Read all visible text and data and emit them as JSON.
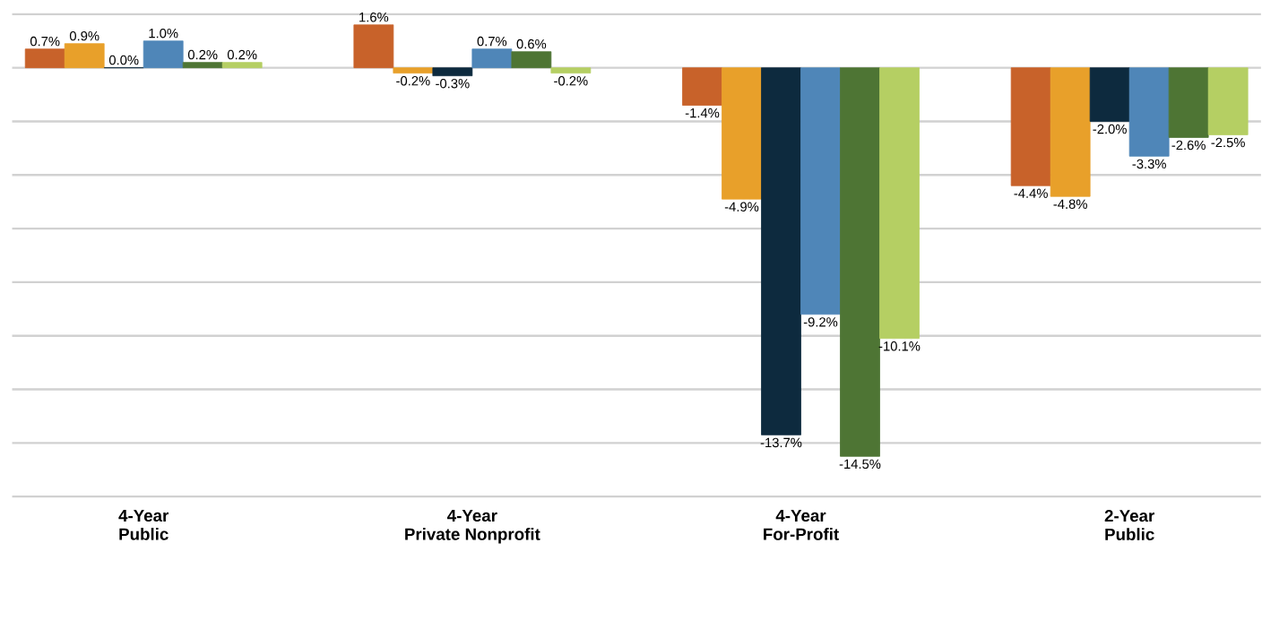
{
  "chart_data": {
    "type": "bar",
    "categories": [
      "4-Year\nPublic",
      "4-Year\nPrivate Nonprofit",
      "4-Year\nFor-Profit",
      "2-Year\nPublic"
    ],
    "series": [
      {
        "color": "#c8622a",
        "values": [
          0.7,
          1.6,
          -1.4,
          -4.4
        ],
        "value_labels": [
          "0.7%",
          "1.6%",
          "-1.4%",
          "-4.4%"
        ]
      },
      {
        "color": "#e8a02a",
        "values": [
          0.9,
          -0.2,
          -4.9,
          -4.8
        ],
        "value_labels": [
          "0.9%",
          "-0.2%",
          "-4.9%",
          "-4.8%"
        ]
      },
      {
        "color": "#0d2a3e",
        "values": [
          0.0,
          -0.3,
          -13.7,
          -2.0
        ],
        "value_labels": [
          "0.0%",
          "-0.3%",
          "-13.7%",
          "-2.0%"
        ]
      },
      {
        "color": "#4f86b8",
        "values": [
          1.0,
          0.7,
          -9.2,
          -3.3
        ],
        "value_labels": [
          "1.0%",
          "0.7%",
          "-9.2%",
          "-3.3%"
        ]
      },
      {
        "color": "#4e7534",
        "values": [
          0.2,
          0.6,
          -14.5,
          -2.6
        ],
        "value_labels": [
          "0.2%",
          "0.6%",
          "-14.5%",
          "-2.6%"
        ]
      },
      {
        "color": "#b5cf63",
        "values": [
          0.2,
          -0.2,
          -10.1,
          -2.5
        ],
        "value_labels": [
          "0.2%",
          "-0.2%",
          "-10.1%",
          "-2.5%"
        ]
      }
    ],
    "ylim": [
      -16,
      2
    ],
    "yticks": [
      {
        "value": -16,
        "label": null
      },
      {
        "value": -14,
        "label": null
      },
      {
        "value": -12,
        "label": null
      },
      {
        "value": -10,
        "label": null
      },
      {
        "value": -8,
        "label": null
      },
      {
        "value": -6,
        "label": null
      },
      {
        "value": -4,
        "label": null
      },
      {
        "value": -2,
        "label": null
      },
      {
        "value": 0,
        "label": null
      },
      {
        "value": 2,
        "label": null
      }
    ],
    "grid": "y",
    "tick_labels": "x"
  }
}
